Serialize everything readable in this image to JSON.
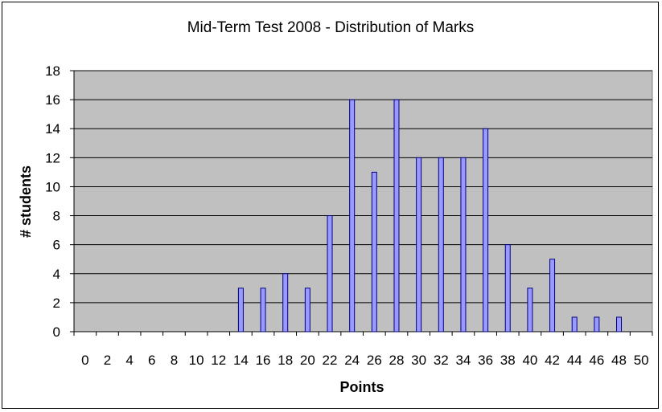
{
  "chart_data": {
    "type": "bar",
    "title": "Mid-Term Test 2008 - Distribution of Marks",
    "xlabel": "Points",
    "ylabel": "# students",
    "categories": [
      "0",
      "2",
      "4",
      "6",
      "8",
      "10",
      "12",
      "14",
      "16",
      "18",
      "20",
      "22",
      "24",
      "26",
      "28",
      "30",
      "32",
      "34",
      "36",
      "38",
      "40",
      "42",
      "44",
      "46",
      "48",
      "50"
    ],
    "values": [
      0,
      0,
      0,
      0,
      0,
      0,
      0,
      3,
      3,
      4,
      3,
      8,
      16,
      11,
      16,
      12,
      12,
      12,
      14,
      6,
      3,
      5,
      1,
      1,
      1,
      0
    ],
    "ylim": [
      0,
      18
    ],
    "yticks": [
      0,
      2,
      4,
      6,
      8,
      10,
      12,
      14,
      16,
      18
    ],
    "grid": true,
    "legend": "none",
    "colors": {
      "bar_fill": "#9999ff",
      "bar_stroke": "#000080",
      "plot_bg": "#c0c0c0",
      "grid": "#000000"
    }
  }
}
